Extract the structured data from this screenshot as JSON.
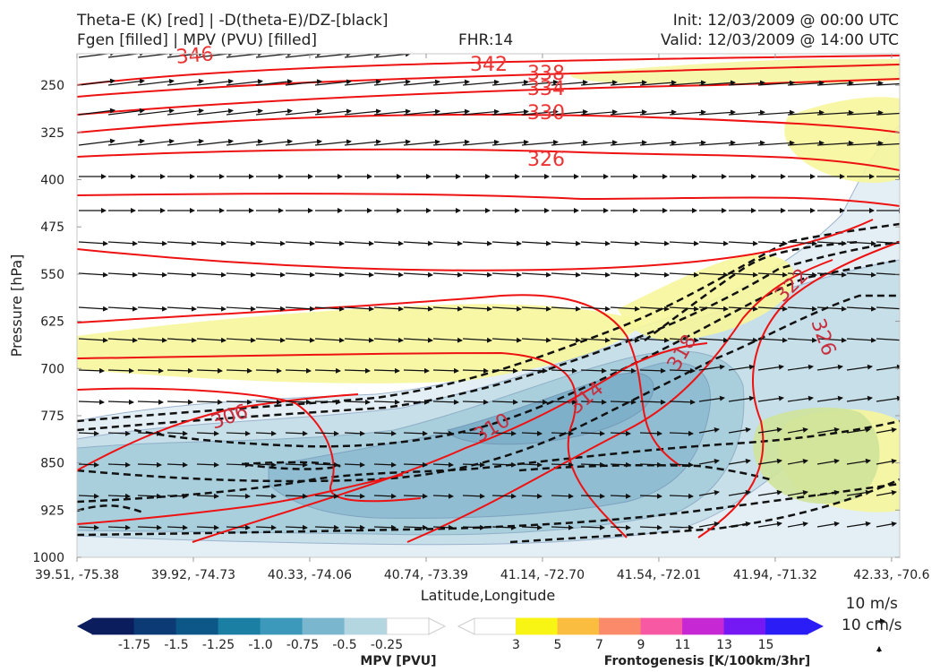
{
  "header": {
    "title_line1": "Theta-E (K) [red] | -D(theta-E)/DZ-[black]",
    "title_line2": "Fgen [filled] | MPV (PVU) [filled]",
    "fhr": "FHR:14",
    "init": "Init: 12/03/2009 @ 00:00 UTC",
    "valid": "Valid: 12/03/2009 @ 14:00 UTC"
  },
  "chart_data": {
    "type": "cross-section contour",
    "xlabel": "Latitude,Longitude",
    "ylabel": "Pressure [hPa]",
    "x_ticks": [
      "39.51, -75.38",
      "39.92, -74.73",
      "40.33, -74.06",
      "40.74, -73.39",
      "41.14, -72.70",
      "41.54, -72.01",
      "41.94, -71.32",
      "42.33, -70.6"
    ],
    "y_ticks": [
      250,
      325,
      400,
      475,
      550,
      625,
      700,
      775,
      850,
      925,
      1000
    ],
    "y_range": [
      200,
      1000
    ],
    "theta_e_contours": [
      {
        "level": 306,
        "label": "306"
      },
      {
        "level": 310,
        "label": "310"
      },
      {
        "level": 314,
        "label": "314"
      },
      {
        "level": 318,
        "label": "318"
      },
      {
        "level": 322,
        "label": "322"
      },
      {
        "level": 326,
        "label": "326"
      },
      {
        "level": 330,
        "label": "330"
      },
      {
        "level": 334,
        "label": "334"
      },
      {
        "level": 338,
        "label": "338"
      },
      {
        "level": 342,
        "label": "342"
      },
      {
        "level": 346,
        "label": "346"
      }
    ],
    "mpv_colorbar": {
      "title": "MPV [PVU]",
      "labels": [
        "-1.75",
        "-1.5",
        "-1.25",
        "-1.0",
        "-0.75",
        "-0.5",
        "-0.25"
      ],
      "colors": [
        "#0c1d5e",
        "#0c3a75",
        "#0c5788",
        "#1b7fa4",
        "#3d99bb",
        "#7ab7ce",
        "#b4d6e1",
        "#ffffff"
      ]
    },
    "fgen_colorbar": {
      "title": "Frontogenesis [K/100km/3hr]",
      "labels": [
        "3",
        "5",
        "7",
        "9",
        "11",
        "13",
        "15"
      ],
      "colors": [
        "#ffffff",
        "#f8f414",
        "#fbbd3f",
        "#fb8a6b",
        "#f75aa3",
        "#c629d3",
        "#7418f4",
        "#2a1df6"
      ]
    },
    "reference_vector": {
      "line1": "10 m/s",
      "line2": "10 cm/s"
    }
  }
}
